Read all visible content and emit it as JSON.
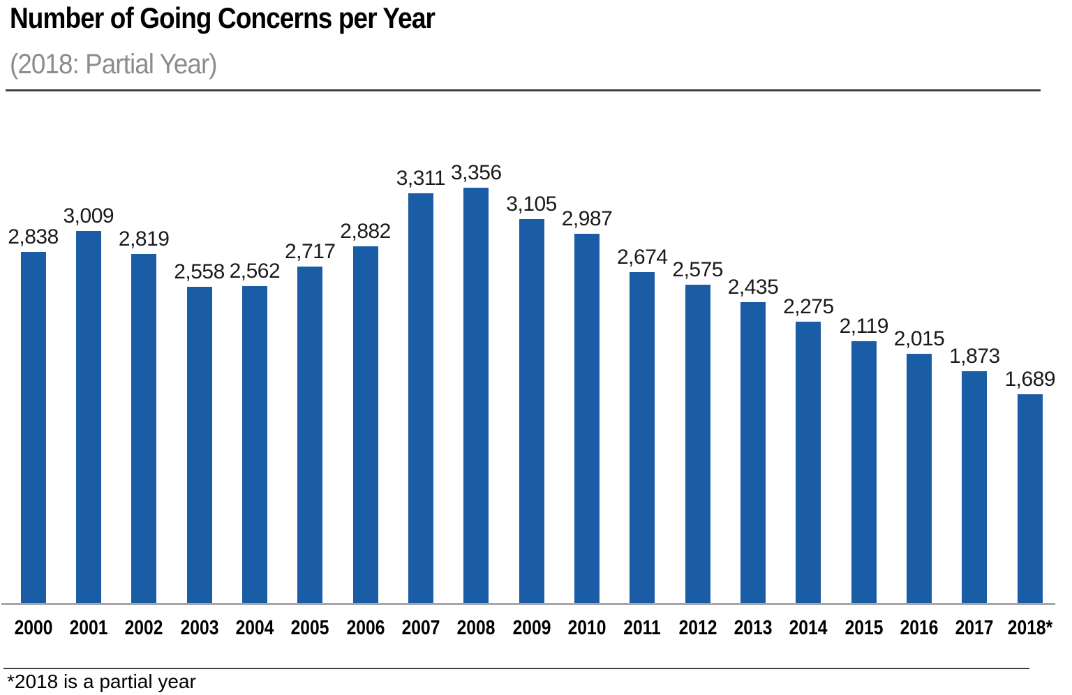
{
  "header": {
    "title": "Number of Going Concerns per Year",
    "subtitle": "(2018: Partial Year)"
  },
  "chart_data": {
    "type": "bar",
    "title": "Number of Going Concerns per Year",
    "subtitle": "(2018: Partial Year)",
    "categories": [
      "2000",
      "2001",
      "2002",
      "2003",
      "2004",
      "2005",
      "2006",
      "2007",
      "2008",
      "2009",
      "2010",
      "2011",
      "2012",
      "2013",
      "2014",
      "2015",
      "2016",
      "2017",
      "2018*"
    ],
    "values": [
      2838,
      3009,
      2819,
      2558,
      2562,
      2717,
      2882,
      3311,
      3356,
      3105,
      2987,
      2674,
      2575,
      2435,
      2275,
      2119,
      2015,
      1873,
      1689
    ],
    "data_labels": [
      "2,838",
      "3,009",
      "2,819",
      "2,558",
      "2,562",
      "2,717",
      "2,882",
      "3,311",
      "3,356",
      "3,105",
      "2,987",
      "2,674",
      "2,575",
      "2,435",
      "2,275",
      "2,119",
      "2,015",
      "1,873",
      "1,689"
    ],
    "xlabel": "",
    "ylabel": "",
    "ylim": [
      0,
      3356
    ],
    "grid": false,
    "legend": false,
    "data_labels_position": "above-bars",
    "bar_color": "#1a5ca5",
    "axis_line_color": "#a6a6a6"
  },
  "footer": {
    "note": "*2018 is a partial year"
  },
  "colors": {
    "bar": "#1a5ca5",
    "axis_line": "#a6a6a6",
    "subtitle_text": "#8c8c8c",
    "rule": "#3f3f3f",
    "title_text": "#000000"
  }
}
